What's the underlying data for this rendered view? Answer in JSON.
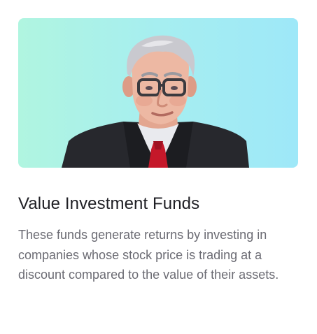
{
  "card": {
    "image_alt": "portrait illustration",
    "title": "Value Investment Funds",
    "description": "These funds generate returns by investing in companies whose stock price is trading at a discount compared to the value of their assets."
  },
  "colors": {
    "banner_start": "#b0f5e0",
    "banner_end": "#9ee8f8",
    "title": "#1f1f24",
    "description": "#6b6b73"
  }
}
